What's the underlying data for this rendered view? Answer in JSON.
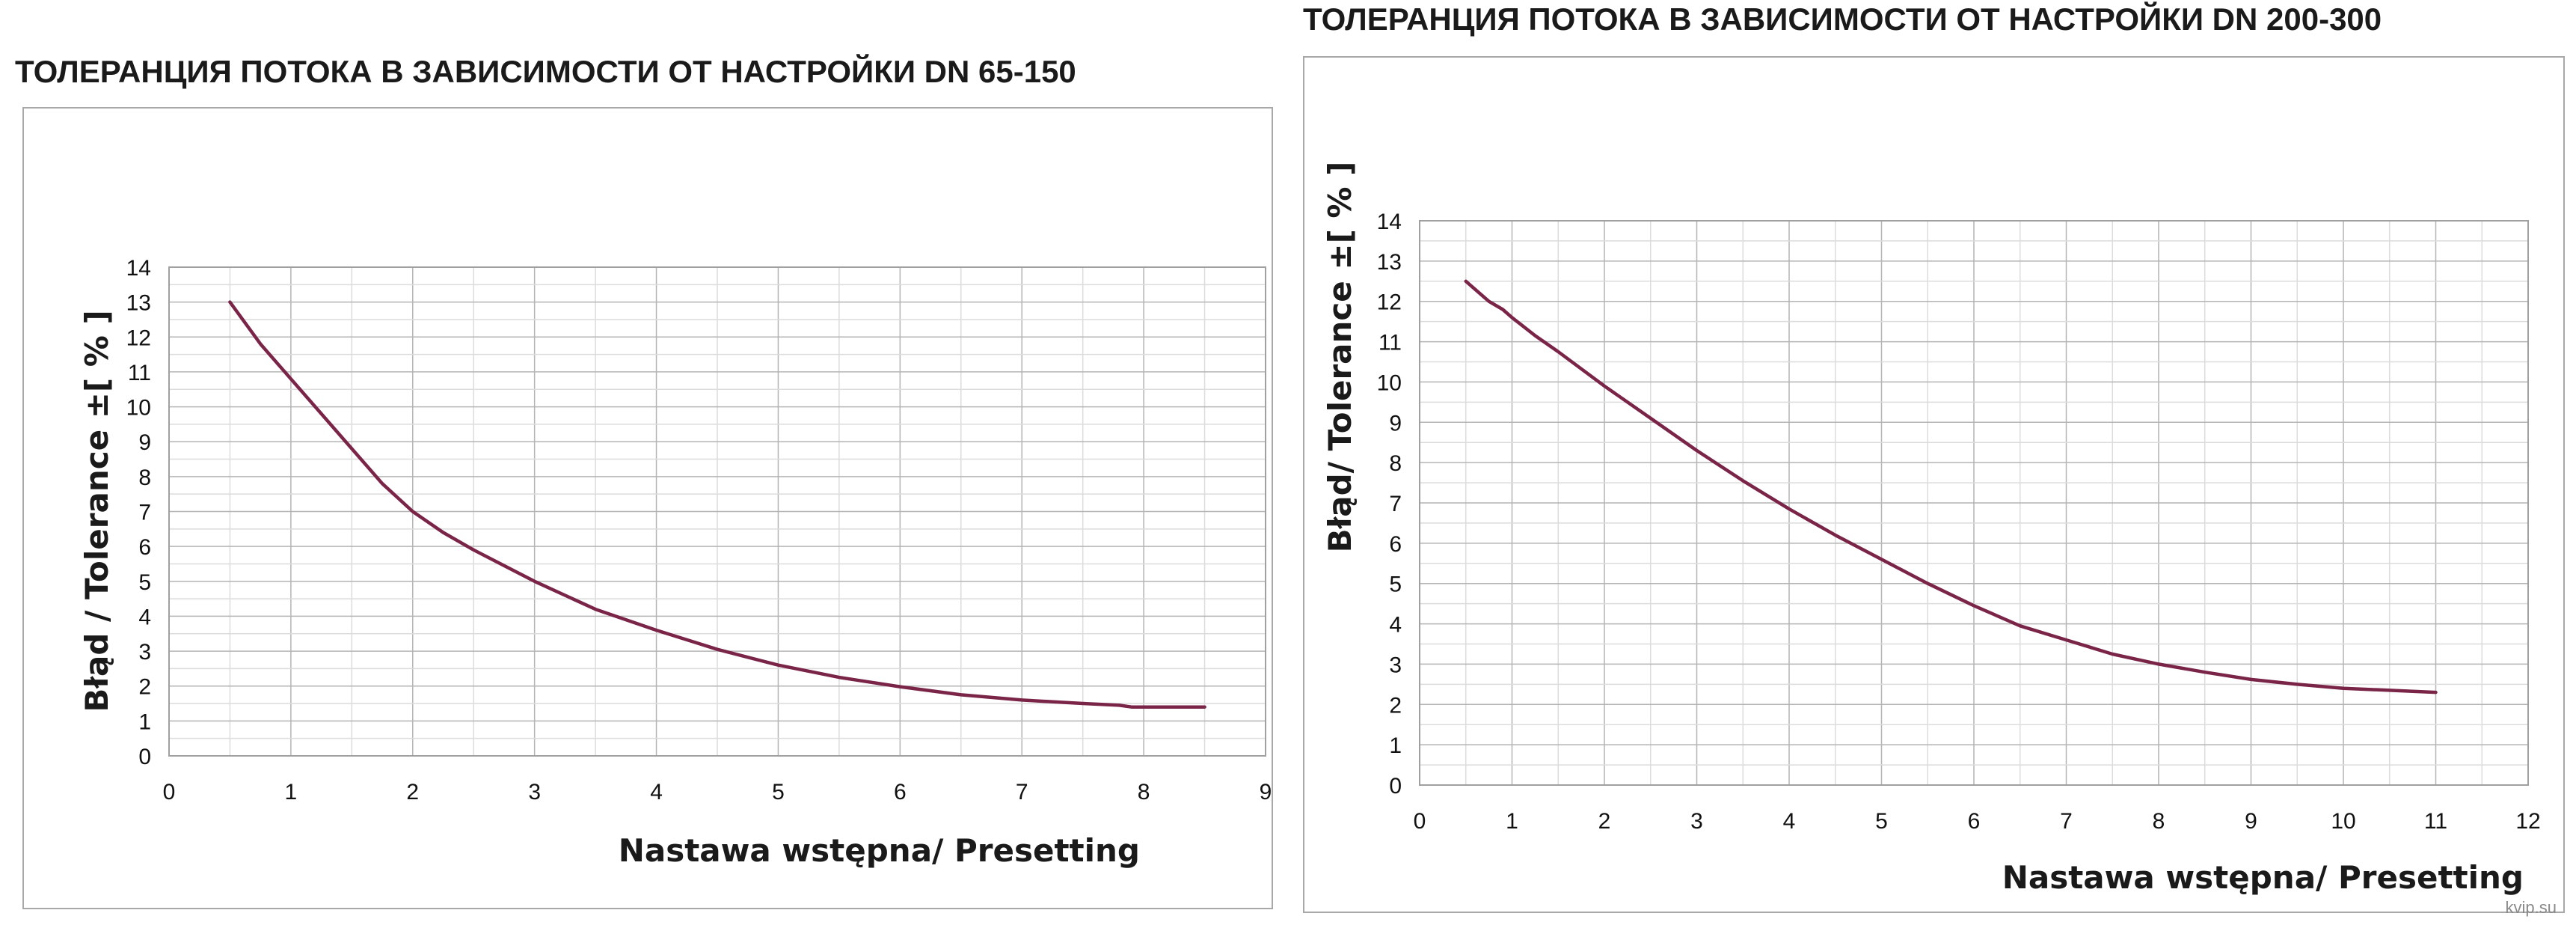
{
  "chart_data": [
    {
      "type": "line",
      "title": "ТОЛЕРАНЦИЯ ПОТОКА В ЗАВИСИМОСТИ ОТ НАСТРОЙКИ DN 65-150",
      "xlabel": "Nastawa wstępna/ Presetting",
      "ylabel": "Błąd / Tolerance ±[ % ]",
      "xlim": [
        0,
        9
      ],
      "ylim": [
        0,
        14
      ],
      "xticks": [
        "0",
        "1",
        "2",
        "3",
        "4",
        "5",
        "6",
        "7",
        "8",
        "9"
      ],
      "yticks": [
        "0",
        "1",
        "2",
        "3",
        "4",
        "5",
        "6",
        "7",
        "8",
        "9",
        "10",
        "11",
        "12",
        "13",
        "14"
      ],
      "grid": true,
      "line_color": "#7a2548",
      "series": [
        {
          "points": [
            [
              0.5,
              13
            ],
            [
              0.75,
              11.8
            ],
            [
              1,
              10.8
            ],
            [
              1.25,
              9.8
            ],
            [
              1.5,
              8.8
            ],
            [
              1.75,
              7.8
            ],
            [
              2,
              7
            ],
            [
              2.25,
              6.4
            ],
            [
              2.5,
              5.9
            ],
            [
              3,
              5
            ],
            [
              3.5,
              4.2
            ],
            [
              4,
              3.6
            ],
            [
              4.5,
              3.05
            ],
            [
              5,
              2.6
            ],
            [
              5.5,
              2.25
            ],
            [
              6,
              1.98
            ],
            [
              6.5,
              1.75
            ],
            [
              7,
              1.6
            ],
            [
              7.5,
              1.5
            ],
            [
              7.8,
              1.45
            ],
            [
              7.9,
              1.4
            ],
            [
              8.5,
              1.4
            ]
          ]
        }
      ]
    },
    {
      "type": "line",
      "title": "ТОЛЕРАНЦИЯ ПОТОКА В ЗАВИСИМОСТИ ОТ НАСТРОЙКИ DN 200-300",
      "xlabel": "Nastawa wstępna/ Presetting",
      "ylabel": "Błąd/ Tolerance ±[ % ]",
      "xlim": [
        0,
        12
      ],
      "ylim": [
        0,
        14
      ],
      "xticks": [
        "0",
        "1",
        "2",
        "3",
        "4",
        "5",
        "6",
        "7",
        "8",
        "9",
        "10",
        "11",
        "12"
      ],
      "yticks": [
        "0",
        "1",
        "2",
        "3",
        "4",
        "5",
        "6",
        "7",
        "8",
        "9",
        "10",
        "11",
        "12",
        "13",
        "14"
      ],
      "grid": true,
      "line_color": "#7a2548",
      "series": [
        {
          "points": [
            [
              0.5,
              12.5
            ],
            [
              0.6,
              12.3
            ],
            [
              0.75,
              12
            ],
            [
              0.9,
              11.8
            ],
            [
              1,
              11.6
            ],
            [
              1.25,
              11.15
            ],
            [
              1.5,
              10.75
            ],
            [
              2,
              9.9
            ],
            [
              2.5,
              9.1
            ],
            [
              3,
              8.3
            ],
            [
              3.5,
              7.55
            ],
            [
              4,
              6.85
            ],
            [
              4.5,
              6.2
            ],
            [
              5,
              5.6
            ],
            [
              5.5,
              5
            ],
            [
              6,
              4.45
            ],
            [
              6.5,
              3.95
            ],
            [
              7,
              3.6
            ],
            [
              7.5,
              3.25
            ],
            [
              8,
              3
            ],
            [
              8.5,
              2.8
            ],
            [
              9,
              2.62
            ],
            [
              9.5,
              2.5
            ],
            [
              10,
              2.4
            ],
            [
              10.5,
              2.35
            ],
            [
              11,
              2.3
            ]
          ]
        }
      ]
    }
  ],
  "watermark": "kvip.su"
}
